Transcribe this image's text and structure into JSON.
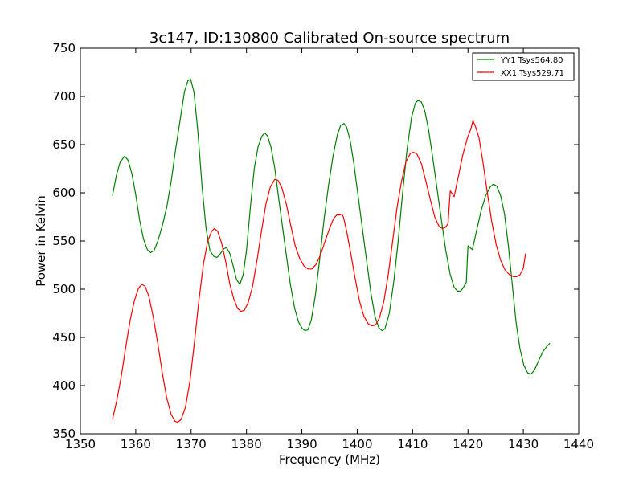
{
  "chart_data": {
    "type": "line",
    "title": "3c147, ID:130800 Calibrated On-source spectrum",
    "xlabel": "Frequency (MHz)",
    "ylabel": "Power in Kelvin",
    "xlim": [
      1350,
      1440
    ],
    "ylim": [
      350,
      750
    ],
    "xticks": [
      1350,
      1360,
      1370,
      1380,
      1390,
      1400,
      1410,
      1420,
      1430,
      1440
    ],
    "yticks": [
      350,
      400,
      450,
      500,
      550,
      600,
      650,
      700,
      750
    ],
    "grid": false,
    "legend_position": "top-right",
    "series": [
      {
        "name": "YY1 Tsys564.80",
        "color": "#008000",
        "points": [
          [
            1355.8,
            597
          ],
          [
            1356.5,
            618
          ],
          [
            1357.2,
            632
          ],
          [
            1358.0,
            638
          ],
          [
            1358.6,
            634
          ],
          [
            1359.3,
            620
          ],
          [
            1360.0,
            598
          ],
          [
            1360.7,
            572
          ],
          [
            1361.4,
            552
          ],
          [
            1362.1,
            541
          ],
          [
            1362.7,
            538
          ],
          [
            1363.3,
            540
          ],
          [
            1364.0,
            550
          ],
          [
            1364.8,
            566
          ],
          [
            1365.6,
            585
          ],
          [
            1366.4,
            612
          ],
          [
            1367.2,
            645
          ],
          [
            1368.0,
            675
          ],
          [
            1368.8,
            705
          ],
          [
            1369.4,
            716
          ],
          [
            1369.9,
            718
          ],
          [
            1370.5,
            705
          ],
          [
            1371.2,
            665
          ],
          [
            1372.0,
            605
          ],
          [
            1372.7,
            563
          ],
          [
            1373.4,
            540
          ],
          [
            1374.1,
            534
          ],
          [
            1374.7,
            533
          ],
          [
            1375.3,
            537
          ],
          [
            1375.9,
            542
          ],
          [
            1376.4,
            543
          ],
          [
            1377.0,
            537
          ],
          [
            1377.6,
            524
          ],
          [
            1378.2,
            510
          ],
          [
            1378.8,
            505
          ],
          [
            1379.4,
            515
          ],
          [
            1380.0,
            540
          ],
          [
            1380.7,
            585
          ],
          [
            1381.4,
            625
          ],
          [
            1382.1,
            648
          ],
          [
            1382.8,
            659
          ],
          [
            1383.3,
            662
          ],
          [
            1383.8,
            659
          ],
          [
            1384.4,
            648
          ],
          [
            1385.1,
            626
          ],
          [
            1385.8,
            595
          ],
          [
            1386.5,
            565
          ],
          [
            1387.2,
            535
          ],
          [
            1387.9,
            506
          ],
          [
            1388.7,
            480
          ],
          [
            1389.4,
            466
          ],
          [
            1390.1,
            459
          ],
          [
            1390.6,
            457
          ],
          [
            1391.1,
            458
          ],
          [
            1391.7,
            468
          ],
          [
            1392.4,
            492
          ],
          [
            1393.2,
            530
          ],
          [
            1394.0,
            572
          ],
          [
            1394.8,
            607
          ],
          [
            1395.6,
            637
          ],
          [
            1396.4,
            660
          ],
          [
            1397.0,
            670
          ],
          [
            1397.6,
            672
          ],
          [
            1398.1,
            668
          ],
          [
            1398.7,
            655
          ],
          [
            1399.4,
            630
          ],
          [
            1400.2,
            595
          ],
          [
            1401.0,
            560
          ],
          [
            1401.8,
            525
          ],
          [
            1402.5,
            495
          ],
          [
            1403.2,
            472
          ],
          [
            1403.9,
            460
          ],
          [
            1404.5,
            457
          ],
          [
            1405.0,
            459
          ],
          [
            1405.8,
            475
          ],
          [
            1406.6,
            508
          ],
          [
            1407.4,
            550
          ],
          [
            1408.2,
            600
          ],
          [
            1409.0,
            645
          ],
          [
            1409.8,
            678
          ],
          [
            1410.5,
            693
          ],
          [
            1411.0,
            696
          ],
          [
            1411.6,
            694
          ],
          [
            1412.2,
            685
          ],
          [
            1412.9,
            665
          ],
          [
            1413.6,
            638
          ],
          [
            1414.4,
            605
          ],
          [
            1415.2,
            572
          ],
          [
            1416.0,
            540
          ],
          [
            1416.8,
            515
          ],
          [
            1417.5,
            502
          ],
          [
            1418.1,
            498
          ],
          [
            1418.7,
            498
          ],
          [
            1419.2,
            502
          ],
          [
            1419.7,
            507
          ],
          [
            1420.0,
            545
          ],
          [
            1420.8,
            541
          ],
          [
            1421.6,
            562
          ],
          [
            1422.4,
            582
          ],
          [
            1423.2,
            597
          ],
          [
            1424.0,
            606
          ],
          [
            1424.6,
            609
          ],
          [
            1425.2,
            607
          ],
          [
            1425.9,
            597
          ],
          [
            1426.6,
            578
          ],
          [
            1427.3,
            545
          ],
          [
            1428.0,
            505
          ],
          [
            1428.7,
            465
          ],
          [
            1429.4,
            438
          ],
          [
            1430.1,
            421
          ],
          [
            1430.8,
            413
          ],
          [
            1431.4,
            412
          ],
          [
            1432.0,
            416
          ],
          [
            1432.7,
            425
          ],
          [
            1433.5,
            435
          ],
          [
            1434.3,
            441
          ],
          [
            1434.8,
            444
          ]
        ]
      },
      {
        "name": "XX1 Tsys529.71",
        "color": "#ff0000",
        "points": [
          [
            1355.8,
            365
          ],
          [
            1356.6,
            385
          ],
          [
            1357.4,
            410
          ],
          [
            1358.2,
            440
          ],
          [
            1359.0,
            468
          ],
          [
            1359.8,
            489
          ],
          [
            1360.5,
            501
          ],
          [
            1361.1,
            505
          ],
          [
            1361.7,
            503
          ],
          [
            1362.4,
            492
          ],
          [
            1363.2,
            470
          ],
          [
            1364.0,
            443
          ],
          [
            1364.8,
            413
          ],
          [
            1365.6,
            387
          ],
          [
            1366.4,
            370
          ],
          [
            1367.1,
            363
          ],
          [
            1367.6,
            362
          ],
          [
            1368.2,
            365
          ],
          [
            1369.0,
            378
          ],
          [
            1369.8,
            405
          ],
          [
            1370.6,
            445
          ],
          [
            1371.4,
            488
          ],
          [
            1372.2,
            525
          ],
          [
            1373.0,
            550
          ],
          [
            1373.7,
            560
          ],
          [
            1374.2,
            563
          ],
          [
            1374.8,
            560
          ],
          [
            1375.5,
            548
          ],
          [
            1376.3,
            527
          ],
          [
            1377.0,
            505
          ],
          [
            1377.7,
            490
          ],
          [
            1378.4,
            480
          ],
          [
            1379.0,
            477
          ],
          [
            1379.6,
            478
          ],
          [
            1380.3,
            486
          ],
          [
            1381.1,
            503
          ],
          [
            1381.9,
            530
          ],
          [
            1382.7,
            560
          ],
          [
            1383.5,
            588
          ],
          [
            1384.3,
            606
          ],
          [
            1385.1,
            614
          ],
          [
            1385.7,
            613
          ],
          [
            1386.4,
            605
          ],
          [
            1387.2,
            588
          ],
          [
            1388.0,
            566
          ],
          [
            1388.8,
            545
          ],
          [
            1389.6,
            532
          ],
          [
            1390.4,
            524
          ],
          [
            1391.1,
            521
          ],
          [
            1391.8,
            521
          ],
          [
            1392.6,
            526
          ],
          [
            1393.4,
            536
          ],
          [
            1394.2,
            550
          ],
          [
            1395.0,
            563
          ],
          [
            1395.7,
            573
          ],
          [
            1396.3,
            577
          ],
          [
            1396.9,
            577
          ],
          [
            1397.2,
            578
          ],
          [
            1397.5,
            575
          ],
          [
            1398.1,
            560
          ],
          [
            1398.8,
            538
          ],
          [
            1399.6,
            512
          ],
          [
            1400.4,
            488
          ],
          [
            1401.2,
            472
          ],
          [
            1402.0,
            464
          ],
          [
            1402.7,
            462
          ],
          [
            1403.3,
            463
          ],
          [
            1404.0,
            470
          ],
          [
            1404.8,
            487
          ],
          [
            1405.6,
            515
          ],
          [
            1406.4,
            550
          ],
          [
            1407.2,
            585
          ],
          [
            1408.0,
            612
          ],
          [
            1408.8,
            632
          ],
          [
            1409.6,
            641
          ],
          [
            1410.2,
            642
          ],
          [
            1410.8,
            640
          ],
          [
            1411.6,
            630
          ],
          [
            1412.4,
            612
          ],
          [
            1413.2,
            593
          ],
          [
            1414.0,
            575
          ],
          [
            1414.8,
            565
          ],
          [
            1415.4,
            563
          ],
          [
            1415.9,
            564
          ],
          [
            1416.4,
            568
          ],
          [
            1416.8,
            602
          ],
          [
            1417.5,
            596
          ],
          [
            1418.3,
            618
          ],
          [
            1419.1,
            640
          ],
          [
            1419.9,
            657
          ],
          [
            1420.5,
            666
          ],
          [
            1420.9,
            675
          ],
          [
            1421.4,
            668
          ],
          [
            1422.0,
            657
          ],
          [
            1422.7,
            632
          ],
          [
            1423.5,
            600
          ],
          [
            1424.3,
            570
          ],
          [
            1425.1,
            546
          ],
          [
            1425.9,
            530
          ],
          [
            1426.7,
            520
          ],
          [
            1427.5,
            515
          ],
          [
            1428.2,
            513
          ],
          [
            1428.8,
            513
          ],
          [
            1429.4,
            515
          ],
          [
            1430.0,
            522
          ],
          [
            1430.4,
            537
          ]
        ]
      }
    ]
  }
}
